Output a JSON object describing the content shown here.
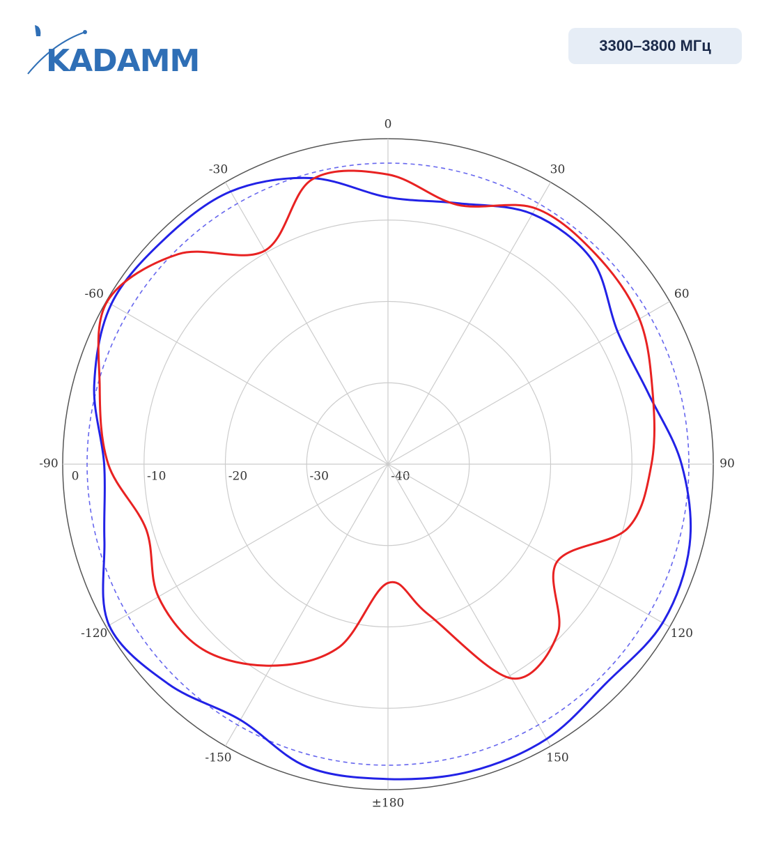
{
  "header": {
    "logo": "KADAMM",
    "badge": "3300–3800 МГц"
  },
  "chart_data": {
    "type": "polar",
    "theta": [
      0,
      15,
      30,
      45,
      60,
      75,
      90,
      105,
      120,
      135,
      150,
      165,
      180,
      195,
      210,
      225,
      240,
      255,
      270,
      285,
      300,
      315,
      330,
      345
    ],
    "series": [
      {
        "color": "#2222e6",
        "values": [
          -7.2,
          -6.8,
          -4.5,
          -4.5,
          -7.4,
          -6.8,
          -3.9,
          -1.6,
          -1.0,
          -2.0,
          -1.0,
          -0.9,
          -1.3,
          -1.5,
          -3.7,
          -1.8,
          -0.4,
          -3.9,
          -5.1,
          -2.6,
          -0.7,
          -1.0,
          -1.3,
          -3.6
        ]
      },
      {
        "color": "#e82222",
        "values": [
          -4.4,
          -7.0,
          -3.7,
          -3.7,
          -4.3,
          -6.3,
          -7.6,
          -9.5,
          -16.0,
          -10.5,
          -9.6,
          -20.9,
          -25.4,
          -16.7,
          -11.4,
          -7.8,
          -7.4,
          -9.2,
          -5.6,
          -3.3,
          -0.1,
          -3.5,
          -9.7,
          -3.8
        ]
      }
    ],
    "reference_circle": {
      "value": -3,
      "color": "#6666ee"
    },
    "rlim": [
      -40,
      0
    ],
    "rticks": [
      -40,
      -30,
      -20,
      -10,
      0
    ],
    "thetaticks": [
      0,
      30,
      60,
      90,
      120,
      150,
      {
        "value": 180,
        "label": "±180"
      },
      -150,
      -120,
      -90,
      -60,
      -30
    ],
    "grid": true
  }
}
